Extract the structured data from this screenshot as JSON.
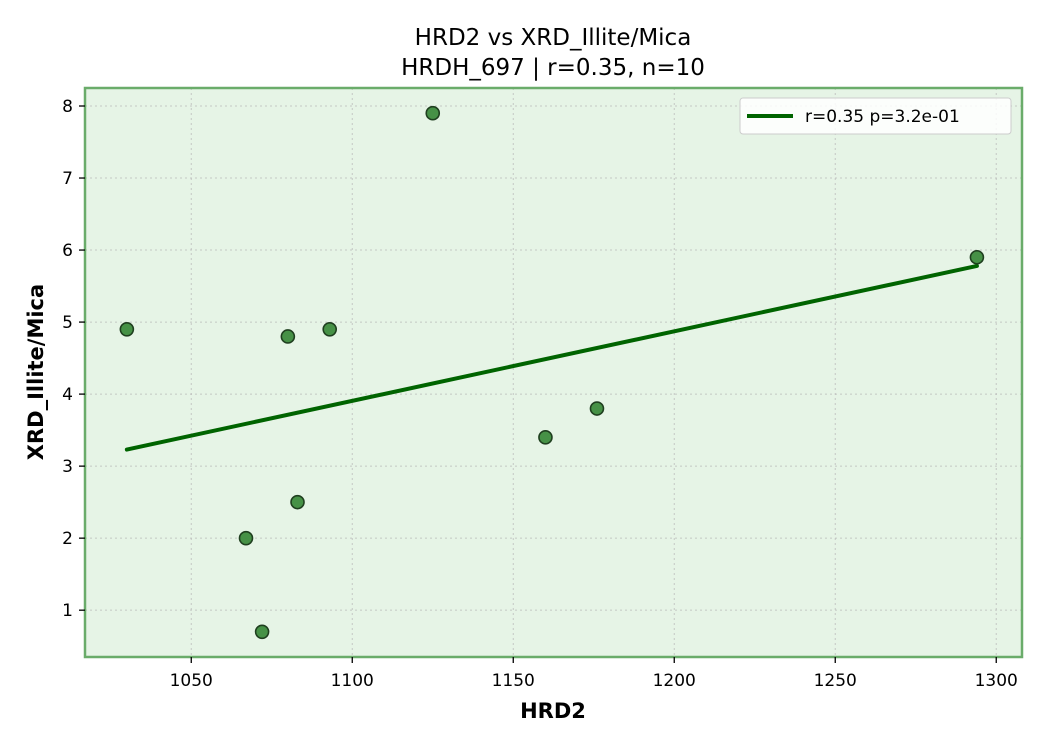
{
  "chart_data": {
    "type": "scatter",
    "title": "HRD2 vs XRD_Illite/Mica",
    "subtitle": "HRDH_697 | r=0.35, n=10",
    "xlabel": "HRD2",
    "ylabel": "XRD_Illite/Mica",
    "xlim": [
      1017,
      1308
    ],
    "ylim": [
      0.35,
      8.25
    ],
    "xticks": [
      1050,
      1100,
      1150,
      1200,
      1250,
      1300
    ],
    "yticks": [
      1,
      2,
      3,
      4,
      5,
      6,
      7,
      8
    ],
    "grid": true,
    "legend_position": "top-right",
    "colors": {
      "plot_background": "#e6f4e6",
      "frame": "#6aac6a",
      "point_fill": "#3d8b3d",
      "point_edge": "#1f3f1f",
      "trend_line": "#006400"
    },
    "points": [
      {
        "x": 1030,
        "y": 4.9
      },
      {
        "x": 1067,
        "y": 2.0
      },
      {
        "x": 1072,
        "y": 0.7
      },
      {
        "x": 1080,
        "y": 4.8
      },
      {
        "x": 1083,
        "y": 2.5
      },
      {
        "x": 1093,
        "y": 4.9
      },
      {
        "x": 1125,
        "y": 7.9
      },
      {
        "x": 1160,
        "y": 3.4
      },
      {
        "x": 1176,
        "y": 3.8
      },
      {
        "x": 1294,
        "y": 5.9
      }
    ],
    "trend_line": {
      "label": "r=0.35  p=3.2e-01",
      "x": [
        1030,
        1294
      ],
      "y": [
        3.23,
        5.78
      ]
    }
  }
}
